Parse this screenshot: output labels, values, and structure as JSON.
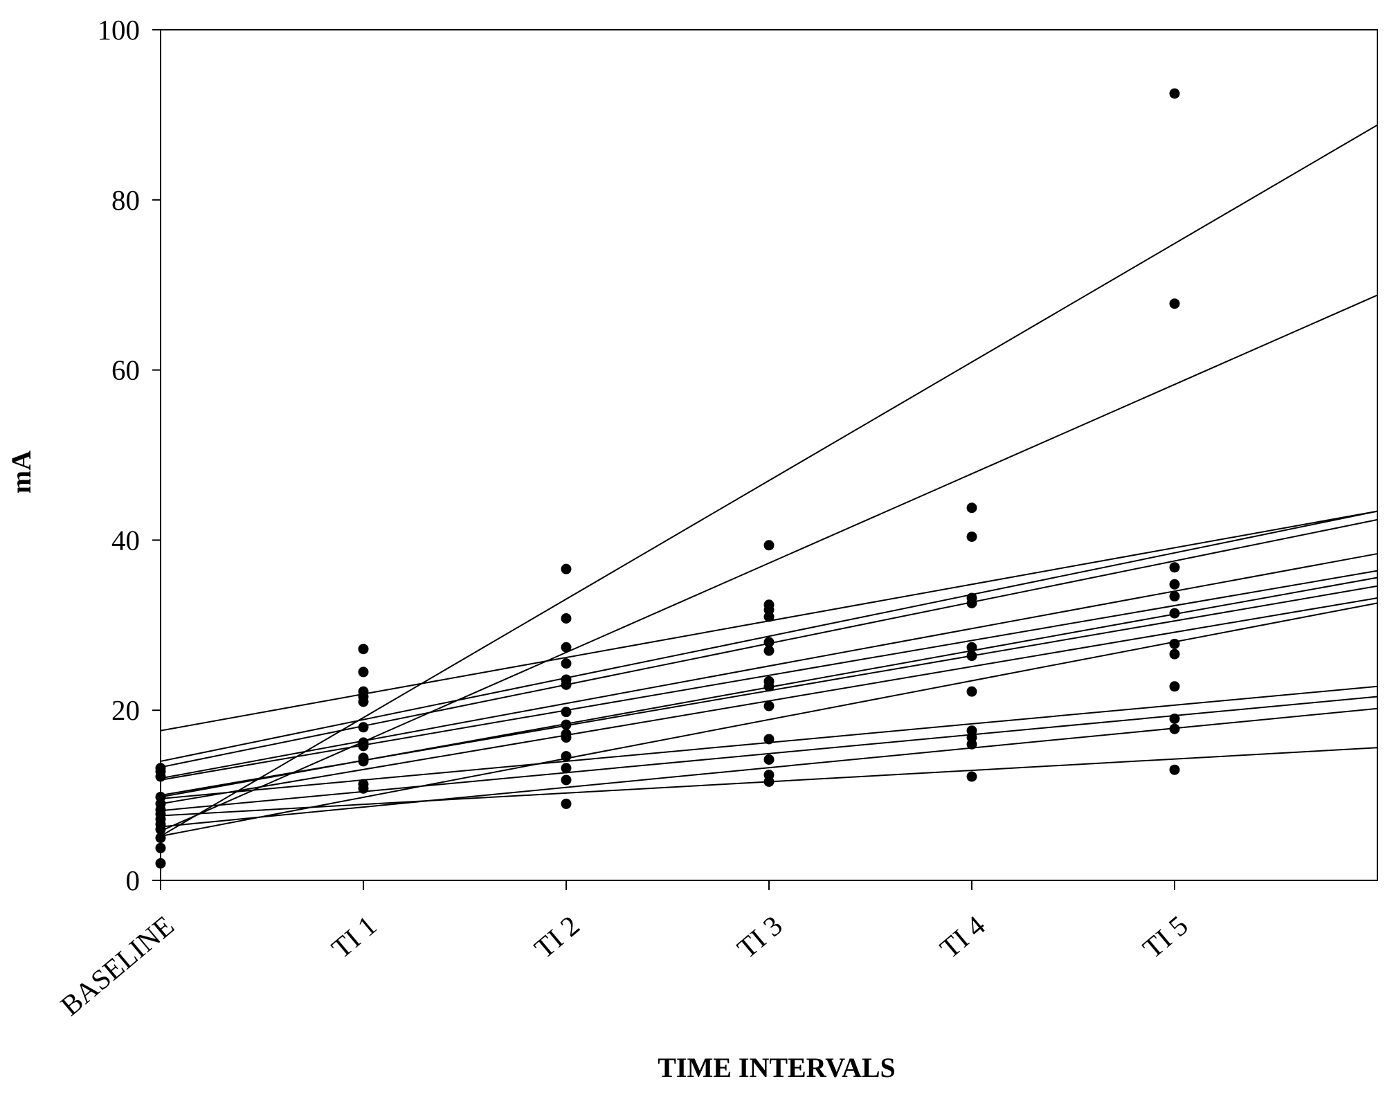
{
  "chart_data": {
    "type": "scatter",
    "title": "",
    "xlabel": "TIME INTERVALS",
    "ylabel": "mA",
    "categories": [
      "BASELINE",
      "TI 1",
      "TI 2",
      "TI 3",
      "TI 4",
      "TI 5"
    ],
    "xlim": [
      0,
      6
    ],
    "ylim": [
      0,
      100
    ],
    "yticks": [
      0,
      20,
      40,
      60,
      80,
      100
    ],
    "grid": false,
    "legend": "none",
    "points": [
      {
        "x": 0,
        "y": 2.0
      },
      {
        "x": 0,
        "y": 3.8
      },
      {
        "x": 0,
        "y": 5.0
      },
      {
        "x": 0,
        "y": 6.0
      },
      {
        "x": 0,
        "y": 6.6
      },
      {
        "x": 0,
        "y": 7.2
      },
      {
        "x": 0,
        "y": 7.8
      },
      {
        "x": 0,
        "y": 8.3
      },
      {
        "x": 0,
        "y": 9.0
      },
      {
        "x": 0,
        "y": 9.8
      },
      {
        "x": 0,
        "y": 12.2
      },
      {
        "x": 0,
        "y": 12.8
      },
      {
        "x": 0,
        "y": 13.2
      },
      {
        "x": 1,
        "y": 10.8
      },
      {
        "x": 1,
        "y": 11.3
      },
      {
        "x": 1,
        "y": 14.0
      },
      {
        "x": 1,
        "y": 14.4
      },
      {
        "x": 1,
        "y": 15.8
      },
      {
        "x": 1,
        "y": 16.2
      },
      {
        "x": 1,
        "y": 18.0
      },
      {
        "x": 1,
        "y": 21.0
      },
      {
        "x": 1,
        "y": 21.6
      },
      {
        "x": 1,
        "y": 22.2
      },
      {
        "x": 1,
        "y": 24.5
      },
      {
        "x": 1,
        "y": 27.2
      },
      {
        "x": 2,
        "y": 9.0
      },
      {
        "x": 2,
        "y": 11.8
      },
      {
        "x": 2,
        "y": 13.2
      },
      {
        "x": 2,
        "y": 14.6
      },
      {
        "x": 2,
        "y": 16.8
      },
      {
        "x": 2,
        "y": 17.2
      },
      {
        "x": 2,
        "y": 18.3
      },
      {
        "x": 2,
        "y": 19.8
      },
      {
        "x": 2,
        "y": 23.0
      },
      {
        "x": 2,
        "y": 23.6
      },
      {
        "x": 2,
        "y": 25.5
      },
      {
        "x": 2,
        "y": 27.4
      },
      {
        "x": 2,
        "y": 30.8
      },
      {
        "x": 2,
        "y": 36.6
      },
      {
        "x": 3,
        "y": 11.6
      },
      {
        "x": 3,
        "y": 12.4
      },
      {
        "x": 3,
        "y": 14.2
      },
      {
        "x": 3,
        "y": 16.6
      },
      {
        "x": 3,
        "y": 20.5
      },
      {
        "x": 3,
        "y": 22.8
      },
      {
        "x": 3,
        "y": 23.4
      },
      {
        "x": 3,
        "y": 27.0
      },
      {
        "x": 3,
        "y": 28.0
      },
      {
        "x": 3,
        "y": 31.0
      },
      {
        "x": 3,
        "y": 31.8
      },
      {
        "x": 3,
        "y": 32.4
      },
      {
        "x": 3,
        "y": 39.4
      },
      {
        "x": 4,
        "y": 12.2
      },
      {
        "x": 4,
        "y": 16.0
      },
      {
        "x": 4,
        "y": 16.8
      },
      {
        "x": 4,
        "y": 17.6
      },
      {
        "x": 4,
        "y": 22.2
      },
      {
        "x": 4,
        "y": 26.4
      },
      {
        "x": 4,
        "y": 27.4
      },
      {
        "x": 4,
        "y": 32.6
      },
      {
        "x": 4,
        "y": 33.2
      },
      {
        "x": 4,
        "y": 40.4
      },
      {
        "x": 4,
        "y": 43.8
      },
      {
        "x": 5,
        "y": 13.0
      },
      {
        "x": 5,
        "y": 17.8
      },
      {
        "x": 5,
        "y": 19.0
      },
      {
        "x": 5,
        "y": 22.8
      },
      {
        "x": 5,
        "y": 26.6
      },
      {
        "x": 5,
        "y": 27.8
      },
      {
        "x": 5,
        "y": 31.4
      },
      {
        "x": 5,
        "y": 33.4
      },
      {
        "x": 5,
        "y": 34.8
      },
      {
        "x": 5,
        "y": 36.8
      },
      {
        "x": 5,
        "y": 67.8
      },
      {
        "x": 5,
        "y": 92.5
      }
    ],
    "fit_lines": [
      {
        "y0": 5.2,
        "y6": 88.8
      },
      {
        "y0": 5.8,
        "y6": 68.8
      },
      {
        "y0": 17.6,
        "y6": 43.4
      },
      {
        "y0": 14.0,
        "y6": 43.4
      },
      {
        "y0": 13.3,
        "y6": 42.4
      },
      {
        "y0": 12.0,
        "y6": 38.4
      },
      {
        "y0": 11.8,
        "y6": 36.4
      },
      {
        "y0": 9.8,
        "y6": 35.6
      },
      {
        "y0": 10.0,
        "y6": 34.6
      },
      {
        "y0": 9.0,
        "y6": 33.2
      },
      {
        "y0": 5.2,
        "y6": 32.6
      },
      {
        "y0": 9.6,
        "y6": 22.8
      },
      {
        "y0": 8.2,
        "y6": 21.6
      },
      {
        "y0": 6.3,
        "y6": 20.2
      },
      {
        "y0": 7.6,
        "y6": 15.6
      }
    ]
  }
}
